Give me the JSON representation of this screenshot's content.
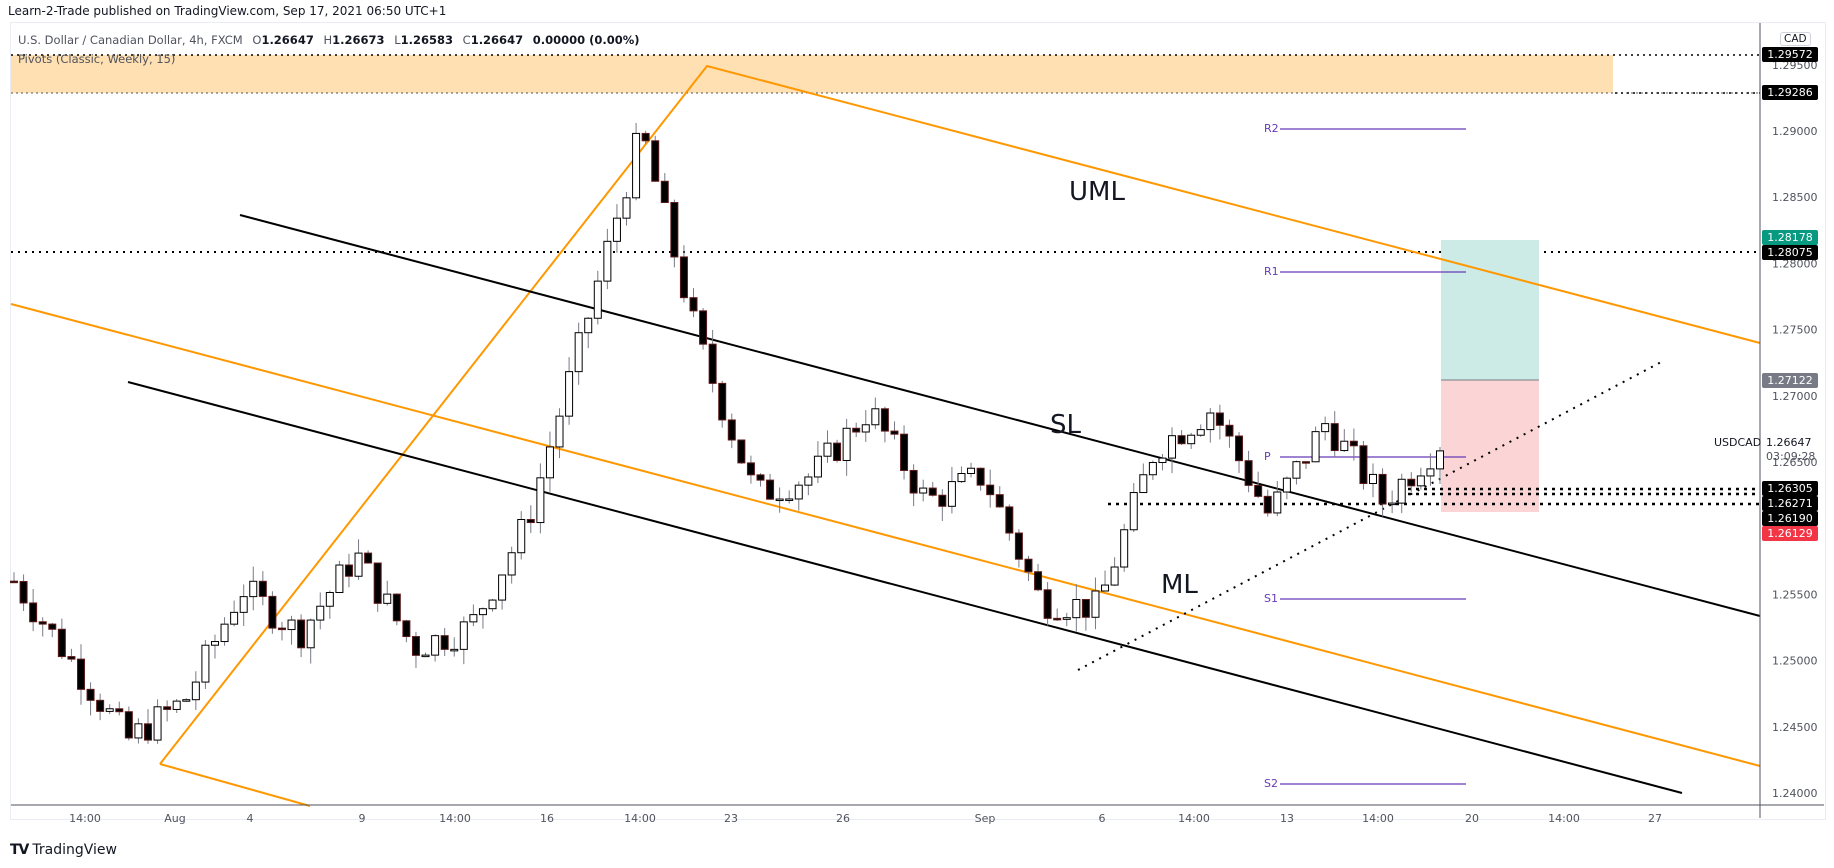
{
  "header": {
    "publisher": "Learn-2-Trade published on TradingView.com, Sep 17, 2021 06:50 UTC+1",
    "symbol_desc": "U.S. Dollar / Canadian Dollar, 4h, FXCM",
    "open_label": "O",
    "open": "1.26647",
    "high_label": "H",
    "high": "1.26673",
    "low_label": "L",
    "low": "1.26583",
    "close_label": "C",
    "close": "1.26647",
    "change": "0.00000 (0.00%)",
    "indicator": "Pivots (Classic, Weekly, 15)"
  },
  "price_axis": {
    "currency": "CAD",
    "symbol": "USDCAD",
    "last_price": "1.26647",
    "countdown": "03:09:28",
    "tags": [
      {
        "value": "1.29572",
        "color": "#000000"
      },
      {
        "value": "1.29286",
        "color": "#000000"
      },
      {
        "value": "1.28178",
        "color": "#089981"
      },
      {
        "value": "1.28075",
        "color": "#000000"
      },
      {
        "value": "1.27122",
        "color": "#787b86"
      },
      {
        "value": "1.26305",
        "color": "#000000"
      },
      {
        "value": "1.26271",
        "color": "#000000"
      },
      {
        "value": "1.26190",
        "color": "#000000"
      },
      {
        "value": "1.26129",
        "color": "#f23645"
      }
    ]
  },
  "annotations": {
    "uml": "UML",
    "sl": "SL",
    "ml": "ML",
    "pivots": {
      "r2": "R2",
      "r1": "R1",
      "p": "P",
      "s1": "S1",
      "s2": "S2"
    }
  },
  "footer": {
    "brand": "TradingView",
    "logo_icon": "tradingview-logo-icon"
  },
  "colors": {
    "pitchfork_orange": "#ff9800",
    "schiff_black": "#000000",
    "pivot_purple": "#673ab7",
    "resistance_zone": "#ffe0b2",
    "target_zone": "#cdebe6",
    "stop_zone": "#fbd5d5",
    "bull_candle": "#ffffff",
    "bear_candle": "#000000"
  },
  "chart_data": {
    "type": "candlestick",
    "title": "U.S. Dollar / Canadian Dollar, 4h, FXCM",
    "xlabel": "",
    "ylabel": "CAD",
    "ylim": [
      1.2385,
      1.2965
    ],
    "x_ticks": [
      "14:00",
      "Aug",
      "4",
      "9",
      "14:00",
      "16",
      "14:00",
      "23",
      "26",
      "Sep",
      "6",
      "14:00",
      "13",
      "14:00",
      "20",
      "14:00",
      "27"
    ],
    "y_ticks": [
      "1.29500",
      "1.29000",
      "1.28500",
      "1.28000",
      "1.27500",
      "1.27000",
      "1.26500",
      "1.26000",
      "1.25500",
      "1.25000",
      "1.24500",
      "1.24000"
    ],
    "grid": false,
    "ohlc_last": {
      "open": 1.26647,
      "high": 1.26673,
      "low": 1.26583,
      "close": 1.26647
    },
    "approx_close_path": [
      {
        "t": "Jul 28",
        "close": 1.256
      },
      {
        "t": "Jul 29",
        "close": 1.25
      },
      {
        "t": "Jul 30",
        "close": 1.244
      },
      {
        "t": "Aug 2",
        "close": 1.247
      },
      {
        "t": "Aug 4",
        "close": 1.2555
      },
      {
        "t": "Aug 6",
        "close": 1.252
      },
      {
        "t": "Aug 9",
        "close": 1.258
      },
      {
        "t": "Aug 11",
        "close": 1.251
      },
      {
        "t": "Aug 13",
        "close": 1.2525
      },
      {
        "t": "Aug 17",
        "close": 1.2605
      },
      {
        "t": "Aug 19",
        "close": 1.275
      },
      {
        "t": "Aug 20",
        "close": 1.29
      },
      {
        "t": "Aug 23",
        "close": 1.274
      },
      {
        "t": "Aug 24",
        "close": 1.2625
      },
      {
        "t": "Aug 26",
        "close": 1.264
      },
      {
        "t": "Aug 27",
        "close": 1.269
      },
      {
        "t": "Aug 30",
        "close": 1.262
      },
      {
        "t": "Sep 1",
        "close": 1.264
      },
      {
        "t": "Sep 3",
        "close": 1.2545
      },
      {
        "t": "Sep 6",
        "close": 1.254
      },
      {
        "t": "Sep 8",
        "close": 1.266
      },
      {
        "t": "Sep 10",
        "close": 1.269
      },
      {
        "t": "Sep 13",
        "close": 1.261
      },
      {
        "t": "Sep 14",
        "close": 1.268
      },
      {
        "t": "Sep 15",
        "close": 1.262
      },
      {
        "t": "Sep 17",
        "close": 1.26647
      }
    ],
    "drawings": {
      "horizontal_levels": [
        1.29572,
        1.29286,
        1.28075,
        1.26305,
        1.26271,
        1.2619
      ],
      "pivots_weekly": {
        "R2": 1.2902,
        "R1": 1.2795,
        "P": 1.2655,
        "S1": 1.2548,
        "S2": 1.2408
      },
      "long_position": {
        "entry": 1.27122,
        "target": 1.28178,
        "stop": 1.26129
      },
      "resistance_zone": [
        1.29286,
        1.29572
      ],
      "labels": [
        "UML",
        "SL",
        "ML"
      ]
    }
  }
}
